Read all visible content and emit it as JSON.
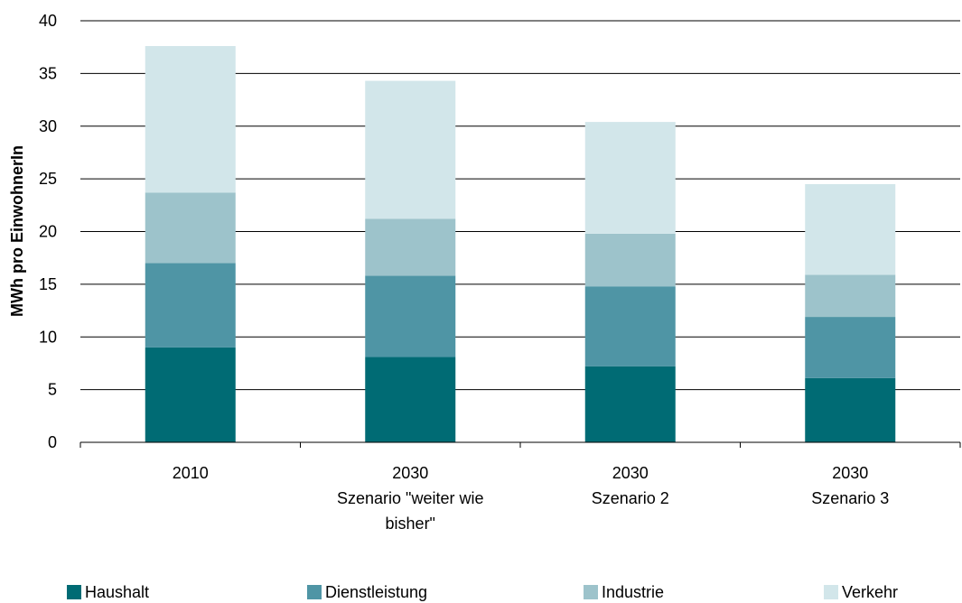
{
  "chart_data": {
    "type": "bar",
    "stacked": true,
    "title": "",
    "xlabel": "",
    "ylabel": "MWh pro EinwohnerIn",
    "ylim": [
      0,
      40
    ],
    "yticks": [
      0,
      5,
      10,
      15,
      20,
      25,
      30,
      35,
      40
    ],
    "grid": true,
    "legend_position": "bottom",
    "categories": [
      [
        "2010"
      ],
      [
        "2030",
        "Szenario \"weiter wie",
        "bisher\""
      ],
      [
        "2030",
        "Szenario 2"
      ],
      [
        "2030",
        "Szenario 3"
      ]
    ],
    "series": [
      {
        "name": "Haushalt",
        "color": "#006b74",
        "values": [
          9.0,
          8.1,
          7.2,
          6.1
        ]
      },
      {
        "name": "Dienstleistung",
        "color": "#4f95a5",
        "values": [
          8.0,
          7.7,
          7.6,
          5.8
        ]
      },
      {
        "name": "Industrie",
        "color": "#9dc3cb",
        "values": [
          6.7,
          5.4,
          5.0,
          4.0
        ]
      },
      {
        "name": "Verkehr",
        "color": "#d2e6ea",
        "values": [
          13.9,
          13.1,
          10.6,
          8.6
        ]
      }
    ]
  }
}
